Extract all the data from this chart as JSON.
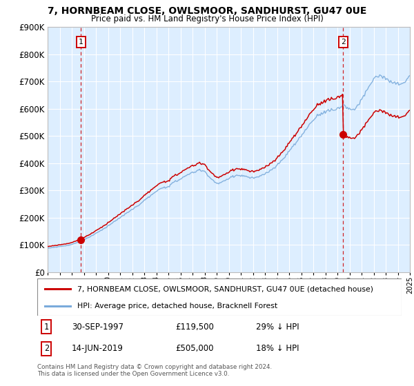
{
  "title_line1": "7, HORNBEAM CLOSE, OWLSMOOR, SANDHURST, GU47 0UE",
  "title_line2": "Price paid vs. HM Land Registry's House Price Index (HPI)",
  "sale1_date": "30-SEP-1997",
  "sale1_price": 119500,
  "sale1_label": "1",
  "sale1_hpi_note": "29% ↓ HPI",
  "sale2_date": "14-JUN-2019",
  "sale2_price": 505000,
  "sale2_label": "2",
  "sale2_hpi_note": "18% ↓ HPI",
  "legend_red": "7, HORNBEAM CLOSE, OWLSMOOR, SANDHURST, GU47 0UE (detached house)",
  "legend_blue": "HPI: Average price, detached house, Bracknell Forest",
  "footnote": "Contains HM Land Registry data © Crown copyright and database right 2024.\nThis data is licensed under the Open Government Licence v3.0.",
  "red_line_color": "#cc0000",
  "blue_line_color": "#7aabdb",
  "chart_bg_color": "#ddeeff",
  "background_color": "#ffffff",
  "grid_color": "#ffffff",
  "ylim": [
    0,
    900000
  ],
  "xlim": [
    1995,
    2025
  ],
  "yticks": [
    0,
    100000,
    200000,
    300000,
    400000,
    500000,
    600000,
    700000,
    800000,
    900000
  ],
  "sale1_t": 1997.75,
  "sale2_t": 2019.458
}
